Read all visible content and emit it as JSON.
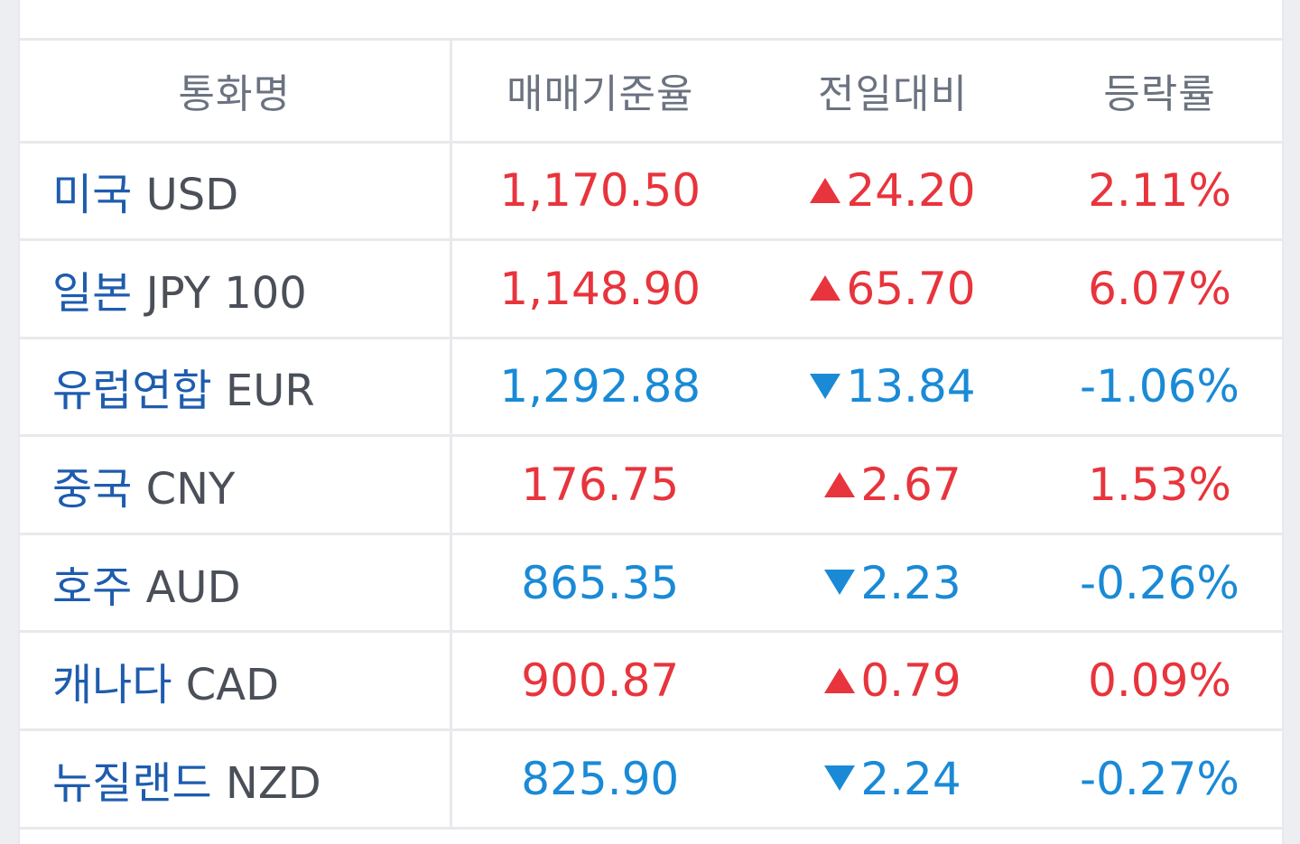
{
  "table": {
    "headers": [
      "통화명",
      "매매기준율",
      "전일대비",
      "등락률"
    ],
    "rows": [
      {
        "name_kr": "미국",
        "code": "USD",
        "rate": "1,170.50",
        "change": "24.20",
        "pct": "2.11%",
        "dir": "up"
      },
      {
        "name_kr": "일본",
        "code": "JPY 100",
        "rate": "1,148.90",
        "change": "65.70",
        "pct": "6.07%",
        "dir": "up"
      },
      {
        "name_kr": "유럽연합",
        "code": "EUR",
        "rate": "1,292.88",
        "change": "13.84",
        "pct": "-1.06%",
        "dir": "down"
      },
      {
        "name_kr": "중국",
        "code": "CNY",
        "rate": "176.75",
        "change": "2.67",
        "pct": "1.53%",
        "dir": "up"
      },
      {
        "name_kr": "호주",
        "code": "AUD",
        "rate": "865.35",
        "change": "2.23",
        "pct": "-0.26%",
        "dir": "down"
      },
      {
        "name_kr": "캐나다",
        "code": "CAD",
        "rate": "900.87",
        "change": "0.79",
        "pct": "0.09%",
        "dir": "up"
      },
      {
        "name_kr": "뉴질랜드",
        "code": "NZD",
        "rate": "825.90",
        "change": "2.24",
        "pct": "-0.27%",
        "dir": "down"
      }
    ]
  },
  "colors": {
    "up": "#e8343c",
    "down": "#1a8ad6",
    "currency_name": "#1e5cae",
    "currency_code": "#4a4f58",
    "header_text": "#6b7280"
  },
  "icons": {
    "up": "triangle-up-icon",
    "down": "triangle-down-icon"
  }
}
